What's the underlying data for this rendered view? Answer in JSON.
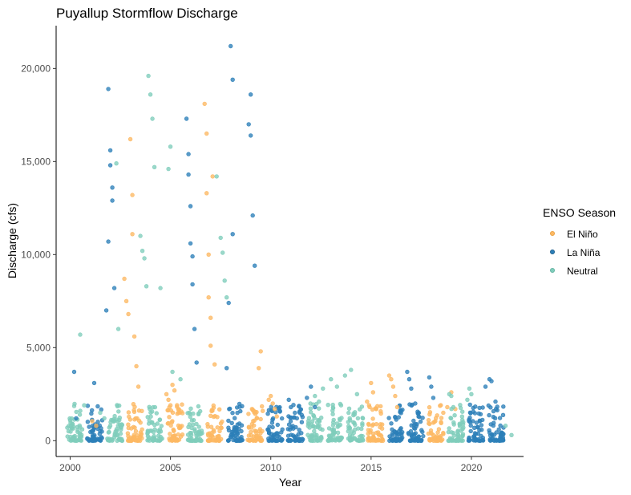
{
  "chart_data": {
    "type": "scatter",
    "title": "Puyallup Stormflow Discharge",
    "xlabel": "Year",
    "ylabel": "Discharge (cfs)",
    "xlim": [
      1999.3,
      2022.6
    ],
    "ylim": [
      -850,
      22300
    ],
    "x_ticks": [
      2000,
      2005,
      2010,
      2015,
      2020
    ],
    "x_tick_labels": [
      "2000",
      "2005",
      "2010",
      "2015",
      "2020"
    ],
    "y_ticks": [
      0,
      5000,
      10000,
      15000,
      20000
    ],
    "y_tick_labels": [
      "0",
      "5,000",
      "10,000",
      "15,000",
      "20,000"
    ],
    "grid": false,
    "legend": {
      "title": "ENSO Season",
      "position": "right"
    },
    "season_order": [
      "Neutral",
      "La Niña",
      "Neutral",
      "El Niño",
      "Neutral",
      "El Niño",
      "Neutral",
      "El Niño",
      "La Niña",
      "El Niño",
      "La Niña",
      "La Niña",
      "Neutral",
      "Neutral",
      "Neutral",
      "El Niño",
      "La Niña",
      "La Niña",
      "El Niño",
      "Neutral",
      "La Niña",
      "La Niña"
    ],
    "series": [
      {
        "name": "El Niño",
        "color": "#fdb863",
        "x": [
          2001.1,
          2001.3,
          2002.7,
          2002.8,
          2002.9,
          2003.0,
          2003.1,
          2003.1,
          2003.2,
          2003.3,
          2003.4,
          2004.8,
          2004.9,
          2005.0,
          2005.1,
          2005.2,
          2006.7,
          2006.8,
          2006.8,
          2006.9,
          2006.9,
          2007.0,
          2007.0,
          2007.1,
          2007.2,
          2009.3,
          2009.4,
          2009.5,
          2009.6,
          2009.9,
          2010.0,
          2010.1,
          2010.2,
          2010.3,
          2014.8,
          2014.9,
          2015.0,
          2015.1,
          2015.9,
          2016.0,
          2016.1,
          2016.2,
          2016.3,
          2018.6,
          2018.8,
          2019.0,
          2019.2
        ],
        "y": [
          1050,
          800,
          8700,
          7500,
          6800,
          16200,
          13200,
          11100,
          5600,
          4000,
          2900,
          2500,
          2200,
          1900,
          3000,
          2700,
          18100,
          16500,
          13300,
          10000,
          7700,
          6600,
          5100,
          14200,
          4100,
          1200,
          3900,
          4800,
          1600,
          2200,
          2400,
          2000,
          1700,
          1300,
          2100,
          1900,
          3100,
          2600,
          3500,
          3300,
          2900,
          2400,
          1800,
          1500,
          1800,
          2600,
          1700
        ]
      },
      {
        "name": "La Niña",
        "color": "#2c7fb8",
        "x": [
          2000.2,
          2000.3,
          2001.2,
          2001.8,
          2001.9,
          2001.9,
          2002.0,
          2002.0,
          2002.1,
          2002.1,
          2002.2,
          2005.8,
          2005.9,
          2005.9,
          2006.0,
          2006.0,
          2006.1,
          2006.1,
          2006.2,
          2006.3,
          2007.8,
          2007.9,
          2008.0,
          2008.1,
          2008.1,
          2008.9,
          2009.0,
          2009.0,
          2009.1,
          2009.2,
          2010.9,
          2011.0,
          2011.2,
          2011.3,
          2011.8,
          2012.0,
          2012.2,
          2016.8,
          2016.9,
          2017.0,
          2017.2,
          2017.9,
          2018.0,
          2018.1,
          2020.7,
          2020.9,
          2021.0,
          2021.2,
          2021.6
        ],
        "y": [
          3700,
          1200,
          3100,
          7000,
          10700,
          18900,
          15600,
          14800,
          13600,
          12900,
          8200,
          17300,
          15400,
          14300,
          12600,
          10600,
          9900,
          8400,
          6000,
          4200,
          3900,
          7400,
          21200,
          19400,
          11100,
          17000,
          16400,
          18600,
          12100,
          9400,
          2200,
          1800,
          1500,
          1200,
          2300,
          2900,
          1800,
          3700,
          3300,
          2800,
          2000,
          3400,
          2900,
          2300,
          2900,
          3300,
          3200,
          2100,
          700
        ]
      },
      {
        "name": "Neutral",
        "color": "#7fcdbb",
        "x": [
          2000.5,
          2000.7,
          2001.5,
          2001.7,
          2002.3,
          2002.4,
          2003.5,
          2003.6,
          2003.7,
          2003.8,
          2003.9,
          2004.0,
          2004.1,
          2004.2,
          2004.5,
          2004.9,
          2005.0,
          2005.1,
          2005.5,
          2007.3,
          2007.5,
          2007.6,
          2007.7,
          2007.8,
          2012.2,
          2012.4,
          2012.6,
          2013.0,
          2013.3,
          2013.7,
          2014.0,
          2014.3,
          2018.9,
          2019.0,
          2019.1,
          2019.8,
          2019.9,
          2020.0,
          2021.7,
          2022.0
        ],
        "y": [
          5700,
          1900,
          1500,
          1200,
          14900,
          6000,
          11000,
          10200,
          9800,
          8300,
          19600,
          18600,
          17300,
          14700,
          8200,
          14600,
          15800,
          3700,
          3300,
          14200,
          10900,
          10100,
          8600,
          7700,
          2400,
          2100,
          2800,
          3300,
          2900,
          3500,
          3800,
          2500,
          2500,
          2400,
          1800,
          2200,
          2800,
          2500,
          800,
          300
        ]
      }
    ]
  }
}
